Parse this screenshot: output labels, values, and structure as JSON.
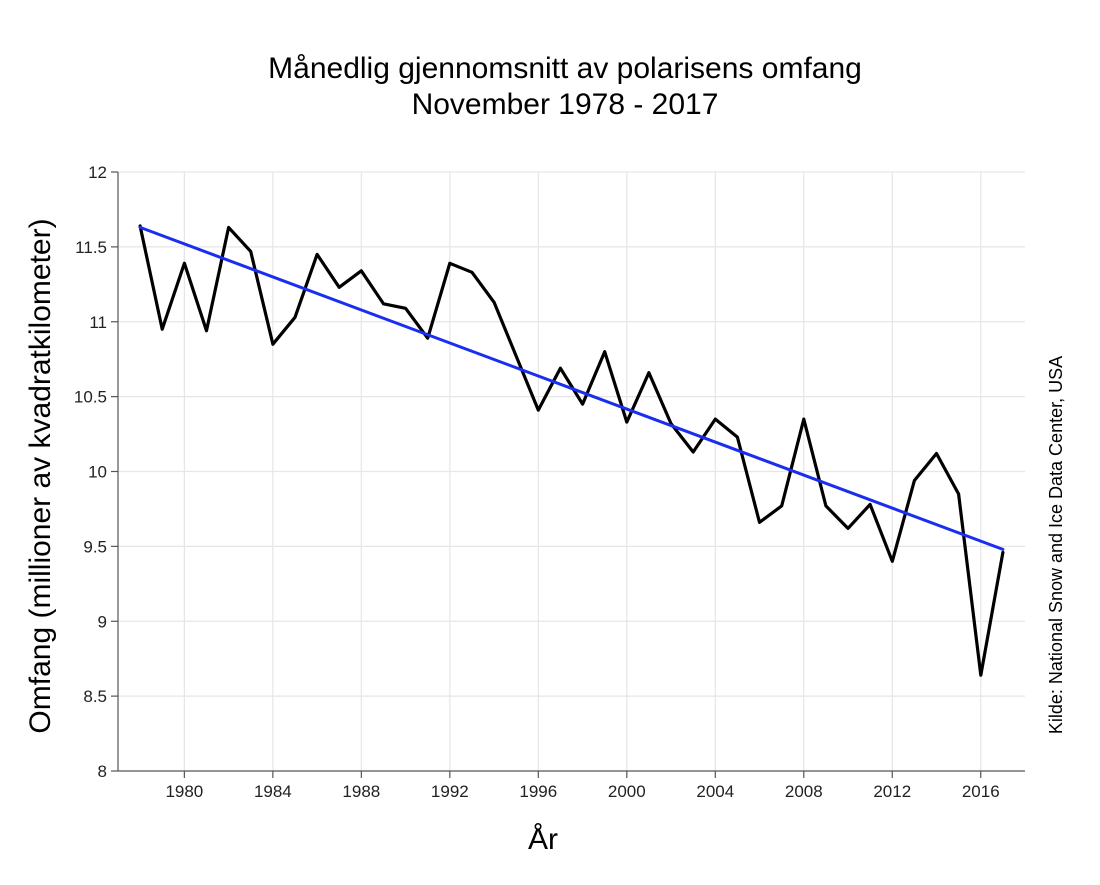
{
  "chart_data": {
    "type": "line",
    "title": "Månedlig gjennomsnitt av polarisens omfang",
    "subtitle": "November 1978 - 2017",
    "xlabel": "År",
    "ylabel": "Omfang (millioner av kvadratkilometer)",
    "source": "Kilde: National Snow and Ice Data Center, USA",
    "xlim": [
      1977,
      2018
    ],
    "ylim": [
      8,
      12
    ],
    "xticks": [
      1980,
      1984,
      1988,
      1992,
      1996,
      2000,
      2004,
      2008,
      2012,
      2016
    ],
    "yticks": [
      8,
      8.5,
      9,
      9.5,
      10,
      10.5,
      11,
      11.5,
      12
    ],
    "ytick_labels": [
      "8",
      "8.5",
      "9",
      "9.5",
      "10",
      "10.5",
      "11",
      "11.5",
      "12"
    ],
    "grid": true,
    "series": [
      {
        "color": "#000000",
        "x": [
          1978,
          1979,
          1980,
          1981,
          1982,
          1983,
          1984,
          1985,
          1986,
          1987,
          1988,
          1989,
          1990,
          1991,
          1992,
          1993,
          1994,
          1995,
          1996,
          1997,
          1998,
          1999,
          2000,
          2001,
          2002,
          2003,
          2004,
          2005,
          2006,
          2007,
          2008,
          2009,
          2010,
          2011,
          2012,
          2013,
          2014,
          2015,
          2016,
          2017
        ],
        "values": [
          11.64,
          10.95,
          11.39,
          10.94,
          11.63,
          11.47,
          10.85,
          11.03,
          11.45,
          11.23,
          11.34,
          11.12,
          11.09,
          10.89,
          11.39,
          11.33,
          11.13,
          10.77,
          10.41,
          10.69,
          10.45,
          10.8,
          10.33,
          10.66,
          10.32,
          10.13,
          10.35,
          10.23,
          9.66,
          9.77,
          10.35,
          9.77,
          9.62,
          9.78,
          9.4,
          9.94,
          10.12,
          9.85,
          8.64,
          9.46
        ]
      },
      {
        "color": "#1a2ef0",
        "x": [
          1978,
          2017
        ],
        "values": [
          11.63,
          9.48
        ]
      }
    ]
  }
}
